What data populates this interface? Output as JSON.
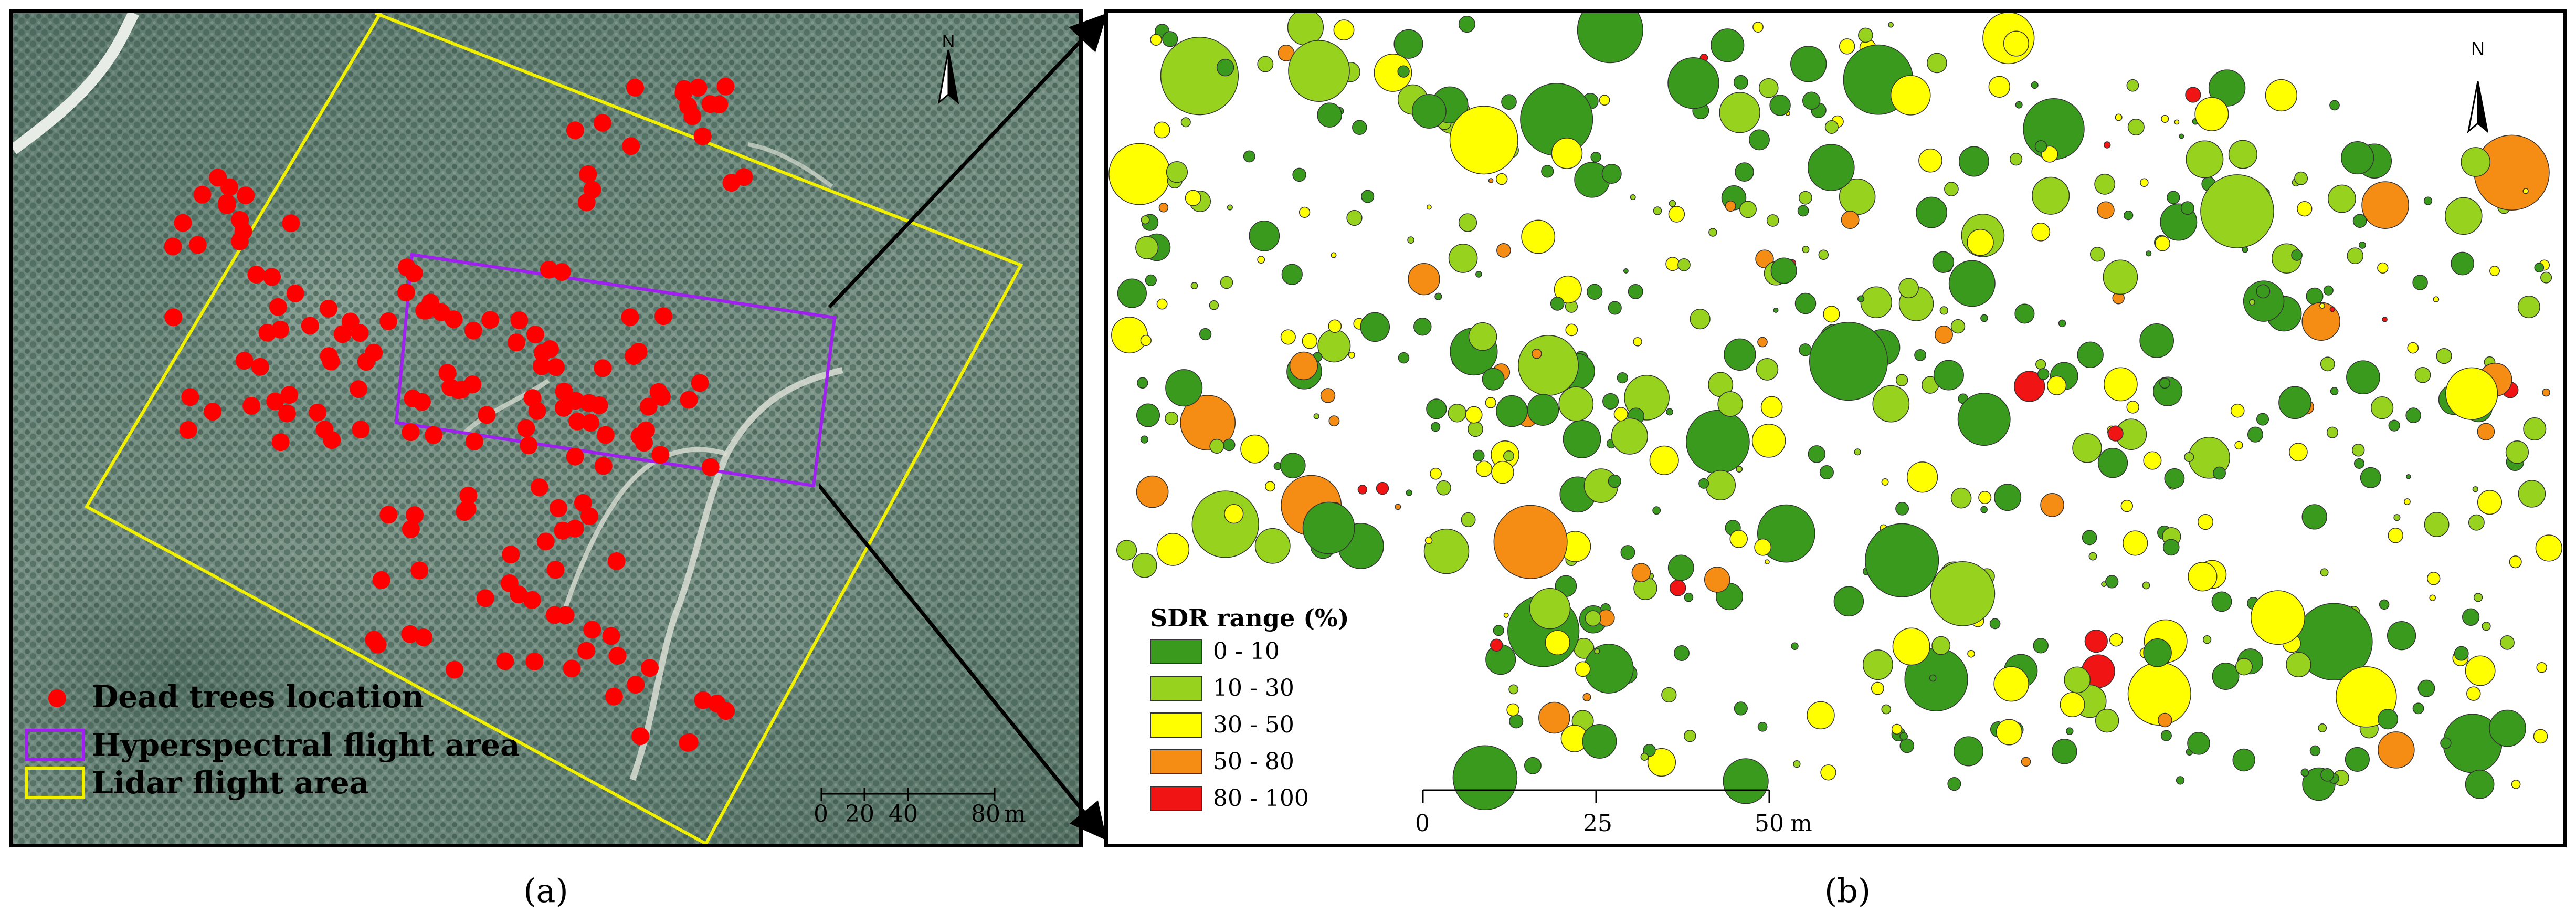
{
  "panel_a": {
    "caption": "(a)",
    "north_label": "N",
    "legend": [
      {
        "label": "Dead trees location",
        "color": "#ff0000",
        "symbol": "circle"
      },
      {
        "label": "Hyperspectral flight area",
        "color": "#a020f0",
        "symbol": "rect"
      },
      {
        "label": "Lidar flight area",
        "color": "#f0f000",
        "symbol": "rect"
      }
    ],
    "scale": {
      "ticks": [
        "0",
        "20",
        "40",
        "80"
      ],
      "unit": "m"
    }
  },
  "panel_b": {
    "caption": "(b)",
    "north_label": "N",
    "legend_title": "SDR range (%)",
    "legend": [
      {
        "label": "0 - 10",
        "color": "#3a9a1e"
      },
      {
        "label": "10 - 30",
        "color": "#96d21e"
      },
      {
        "label": "30 - 50",
        "color": "#ffff00"
      },
      {
        "label": "50 - 80",
        "color": "#f58c14"
      },
      {
        "label": "80 - 100",
        "color": "#f01414"
      }
    ],
    "scale": {
      "ticks": [
        "0",
        "25",
        "50"
      ],
      "unit": "m"
    }
  },
  "colors": {
    "dead_tree": "#ff0000",
    "hyperspectral_box": "#a020f0",
    "lidar_box": "#f0f000",
    "connector": "#000000"
  }
}
